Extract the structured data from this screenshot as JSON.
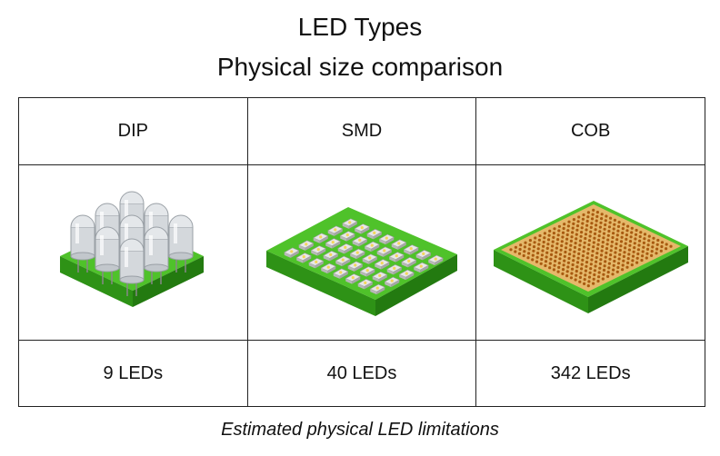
{
  "title": "LED Types",
  "subtitle": "Physical size comparison",
  "columns": [
    {
      "type": "DIP",
      "count_label": "9 LEDs",
      "led_count": 9
    },
    {
      "type": "SMD",
      "count_label": "40 LEDs",
      "led_count": 40
    },
    {
      "type": "COB",
      "count_label": "342 LEDs",
      "led_count": 342
    }
  ],
  "caption": "Estimated physical LED limitations",
  "colors": {
    "board": "#3fae1f",
    "board_dark": "#2b8a14",
    "cob_dot": "#a85a10",
    "cob_bg": "#e5b86a",
    "smd_chip": "#e8e8e8"
  }
}
